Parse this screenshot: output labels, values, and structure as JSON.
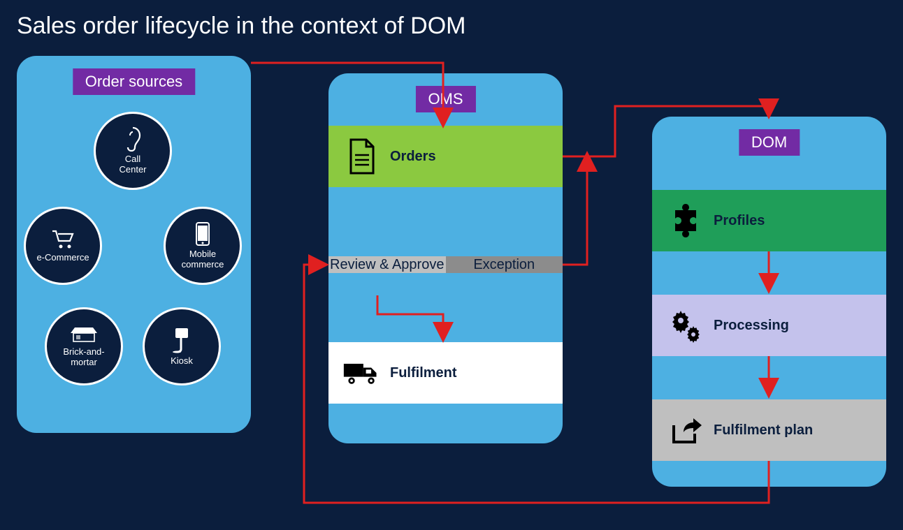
{
  "title": "Sales order lifecycle in the context of DOM",
  "colors": {
    "background": "#0b1e3d",
    "panel_blue": "#4db0e2",
    "header_purple": "#722ba4",
    "white": "#ffffff",
    "green_band": "#8bc940",
    "grey_light": "#bfbfbf",
    "grey_mid": "#8c8c8c",
    "fulfilment_bg": "#ffffff",
    "dom_green": "#1f9e59",
    "dom_lavender": "#c4c2ec",
    "dom_grey": "#bfbfbf",
    "arrow_red": "#e02020",
    "text_dark": "#0b1e3d"
  },
  "panels": {
    "order_sources": {
      "title": "Order sources",
      "nodes": {
        "call_center": "Call\nCenter",
        "ecommerce": "e-Commerce",
        "mobile": "Mobile\ncommerce",
        "brick": "Brick-and-\nmortar",
        "kiosk": "Kiosk"
      }
    },
    "oms": {
      "title": "OMS",
      "bands": {
        "orders": "Orders",
        "review": "Review & Approve",
        "exception": "Exception",
        "fulfilment": "Fulfilment"
      }
    },
    "dom": {
      "title": "DOM",
      "bands": {
        "profiles": "Profiles",
        "processing": "Processing",
        "fulfilment_plan": "Fulfilment plan"
      }
    }
  },
  "styling": {
    "title_fontsize": 34,
    "header_fontsize": 22,
    "band_label_fontsize": 20,
    "circle_diameter": 112,
    "circle_border_width": 3,
    "panel_radius": 28,
    "arrow_stroke_width": 3
  },
  "arrows": [
    {
      "from": "order-sources",
      "to": "oms.orders",
      "path": "right-top"
    },
    {
      "from": "oms.exception",
      "to": "oms.orders",
      "path": "right-up"
    },
    {
      "from": "oms.orders",
      "to": "dom.profiles",
      "path": "right-elbow"
    },
    {
      "from": "oms.review",
      "to": "oms.fulfilment",
      "path": "down"
    },
    {
      "from": "dom.profiles",
      "to": "dom.processing",
      "path": "down"
    },
    {
      "from": "dom.processing",
      "to": "dom.fulfilment_plan",
      "path": "down"
    },
    {
      "from": "dom.fulfilment_plan",
      "to": "oms.review",
      "path": "long-bottom"
    }
  ]
}
